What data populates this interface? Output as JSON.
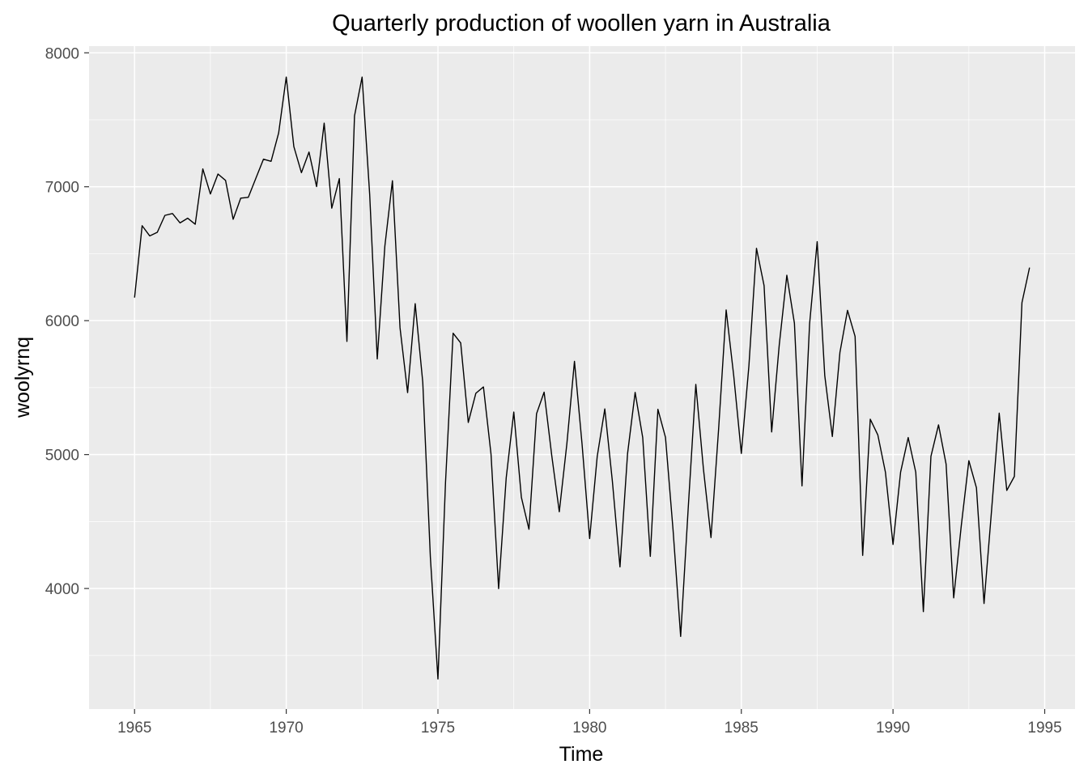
{
  "chart_data": {
    "type": "line",
    "title": "Quarterly production of woollen yarn in Australia",
    "xlabel": "Time",
    "ylabel": "woolyrnq",
    "xlim": [
      1963.5,
      1996.0
    ],
    "ylim": [
      3100,
      8050
    ],
    "x_ticks": [
      1965,
      1970,
      1975,
      1980,
      1985,
      1990,
      1995
    ],
    "y_ticks": [
      4000,
      5000,
      6000,
      7000,
      8000
    ],
    "grid": true,
    "background": "#EBEBEB",
    "gridline_color": "#FFFFFF",
    "line_color": "#000000",
    "series": [
      {
        "start": 1965.0,
        "frequency": 4,
        "values": [
          6172,
          6709,
          6633,
          6660,
          6786,
          6800,
          6730,
          6765,
          6720,
          7133,
          6946,
          7095,
          7047,
          6757,
          6915,
          6921,
          7064,
          7206,
          7190,
          7402,
          7819,
          7300,
          7105,
          7259,
          7001,
          7475,
          6840,
          7061,
          5845,
          7529,
          7819,
          6943,
          5714,
          6556,
          7045,
          5947,
          5463,
          6127,
          5540,
          4235,
          3324,
          4793,
          5906,
          5834,
          5240,
          5458,
          5505,
          5002,
          3999,
          4826,
          5318,
          4681,
          4442,
          5305,
          5466,
          4995,
          4573,
          5081,
          5696,
          5079,
          4373,
          4986,
          5341,
          4800,
          4161,
          5007,
          5464,
          5127,
          4240,
          5338,
          5129,
          4437,
          3642,
          4602,
          5524,
          4895,
          4380,
          5186,
          6080,
          5588,
          5009,
          5663,
          6540,
          6262,
          5169,
          5819,
          6339,
          5981,
          4766,
          5976,
          6590,
          5590,
          5135,
          5762,
          6077,
          5882,
          4247,
          5264,
          5146,
          4868,
          4329,
          4869,
          5127,
          4868,
          3827,
          4987,
          5222,
          4928,
          3930,
          4469,
          4954,
          4752,
          3888,
          4588,
          5309,
          4732,
          4837,
          6135,
          6396
        ]
      }
    ]
  }
}
